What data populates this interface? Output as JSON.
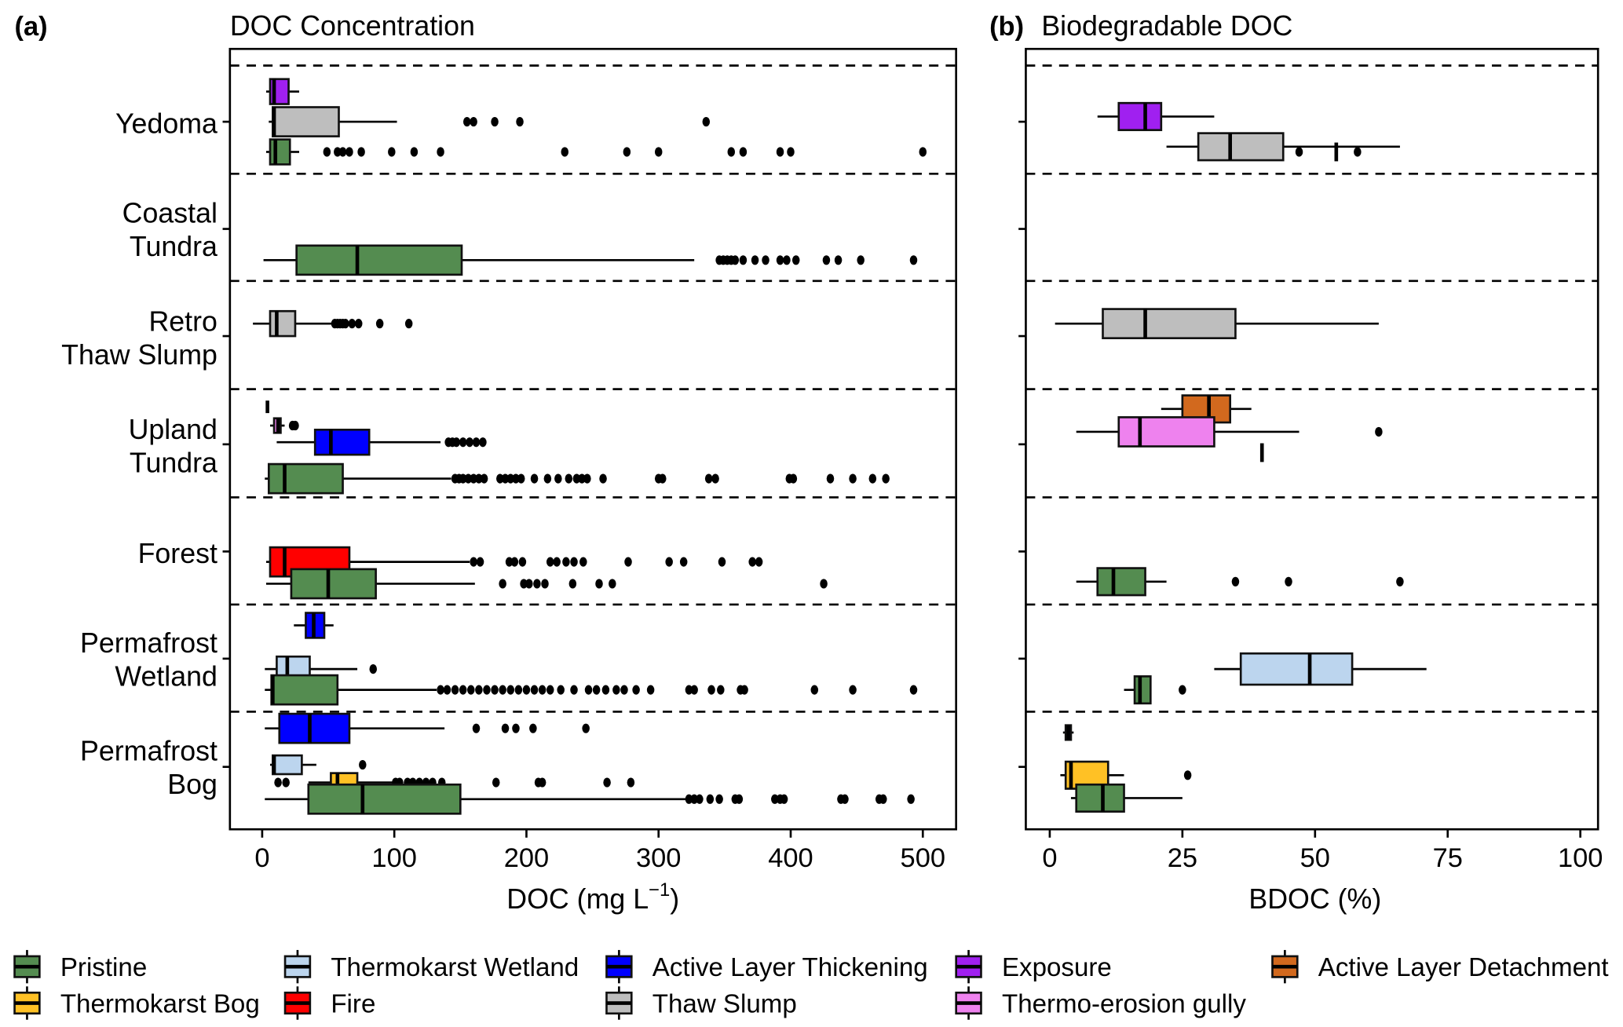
{
  "figure": {
    "panel_a_label": "(a)",
    "panel_b_label": "(b)"
  },
  "legend": [
    {
      "key": "pristine",
      "label": "Pristine",
      "color": "#548c50"
    },
    {
      "key": "thermokarst_wetland",
      "label": "Thermokarst Wetland",
      "color": "#bcd5ee"
    },
    {
      "key": "active_layer_thickening",
      "label": "Active Layer Thickening",
      "color": "#0000ff"
    },
    {
      "key": "exposure",
      "label": "Exposure",
      "color": "#a020f0"
    },
    {
      "key": "active_layer_detachment",
      "label": "Active Layer Detachment",
      "color": "#d2691e"
    },
    {
      "key": "thermokarst_bog",
      "label": "Thermokarst Bog",
      "color": "#ffc125"
    },
    {
      "key": "fire",
      "label": "Fire",
      "color": "#ff0000"
    },
    {
      "key": "thaw_slump",
      "label": "Thaw Slump",
      "color": "#bebebe"
    },
    {
      "key": "thermo_erosion_gully",
      "label": "Thermo-erosion gully",
      "color": "#ee82ee"
    }
  ],
  "chart_data": [
    {
      "type": "boxplot",
      "orientation": "horizontal",
      "title": "DOC Concentration",
      "xlabel": "DOC (mg L",
      "xlabel_superscript": "−1",
      "xlabel_suffix": ")",
      "xlim": [
        -25,
        530
      ],
      "xticks": [
        0,
        100,
        200,
        300,
        400,
        500
      ],
      "xtick_labels": [
        "0",
        "100",
        "200",
        "300",
        "400",
        "500"
      ],
      "categories": [
        {
          "lines": [
            "Yedoma"
          ]
        },
        {
          "lines": [
            "Coastal",
            "Tundra"
          ]
        },
        {
          "lines": [
            "Retro",
            "Thaw Slump"
          ]
        },
        {
          "lines": [
            "Upland",
            "Tundra"
          ]
        },
        {
          "lines": [
            "Forest"
          ]
        },
        {
          "lines": [
            "Permafrost",
            "Wetland"
          ]
        },
        {
          "lines": [
            "Permafrost",
            "Bog"
          ]
        }
      ],
      "grid": "dashed separators between categories",
      "boxes": [
        {
          "row": 0,
          "group": "exposure",
          "whisker_low": 3,
          "q1": 6,
          "median": 9,
          "q3": 20,
          "whisker_high": 28,
          "outliers": []
        },
        {
          "row": 0,
          "group": "thaw_slump",
          "whisker_low": 5,
          "q1": 8,
          "median": 9,
          "q3": 58,
          "whisker_high": 102,
          "outliers": [
            155,
            160,
            176,
            195,
            336
          ]
        },
        {
          "row": 0,
          "group": "pristine",
          "whisker_low": 3,
          "q1": 6,
          "median": 10,
          "q3": 21,
          "whisker_high": 28,
          "outliers": [
            49,
            57,
            61,
            66,
            75,
            98,
            115,
            135,
            229,
            276,
            300,
            355,
            364,
            392,
            400,
            500
          ]
        },
        {
          "row": 1,
          "group": "pristine",
          "whisker_low": 1,
          "q1": 26,
          "median": 72,
          "q3": 151,
          "whisker_high": 327,
          "outliers": [
            346,
            349,
            352,
            355,
            358,
            364,
            373,
            381,
            392,
            397,
            404,
            427,
            436,
            453,
            493
          ]
        },
        {
          "row": 2,
          "group": "thaw_slump",
          "whisker_low": -7,
          "q1": 6,
          "median": 11,
          "q3": 25,
          "whisker_high": 54,
          "outliers": [
            55,
            57,
            59,
            61,
            63,
            68,
            73,
            89,
            111
          ]
        },
        {
          "row": 3,
          "group": "active_layer_detachment",
          "whisker_low": 4,
          "q1": 4,
          "median": 4,
          "q3": 4,
          "whisker_high": 4,
          "outliers": []
        },
        {
          "row": 3,
          "group": "thermo_erosion_gully",
          "whisker_low": 6,
          "q1": 9,
          "median": 12,
          "q3": 14,
          "whisker_high": 17,
          "outliers": [
            23,
            25
          ]
        },
        {
          "row": 3,
          "group": "active_layer_thickening",
          "whisker_low": 11,
          "q1": 40,
          "median": 52,
          "q3": 81,
          "whisker_high": 135,
          "outliers": [
            141,
            144,
            147,
            152,
            157,
            162,
            167
          ]
        },
        {
          "row": 3,
          "group": "pristine",
          "whisker_low": 2,
          "q1": 5,
          "median": 17,
          "q3": 61,
          "whisker_high": 143,
          "outliers": [
            146,
            149,
            152,
            156,
            160,
            164,
            168,
            180,
            184,
            188,
            192,
            196,
            206,
            216,
            224,
            232,
            238,
            242,
            246,
            258,
            300,
            303,
            338,
            343,
            399,
            402,
            430,
            447,
            462,
            472
          ]
        },
        {
          "row": 4,
          "group": "fire",
          "whisker_low": 3,
          "q1": 6,
          "median": 17,
          "q3": 66,
          "whisker_high": 157,
          "outliers": [
            160,
            165,
            187,
            191,
            197,
            218,
            223,
            230,
            236,
            243,
            277,
            308,
            319,
            348,
            371,
            376
          ]
        },
        {
          "row": 4,
          "group": "pristine",
          "whisker_low": 3,
          "q1": 22,
          "median": 50,
          "q3": 86,
          "whisker_high": 161,
          "outliers": [
            182,
            198,
            202,
            208,
            214,
            235,
            255,
            265,
            425
          ]
        },
        {
          "row": 5,
          "group": "active_layer_thickening",
          "whisker_low": 24,
          "q1": 33,
          "median": 39,
          "q3": 47,
          "whisker_high": 54,
          "outliers": []
        },
        {
          "row": 5,
          "group": "thermokarst_wetland",
          "whisker_low": 2,
          "q1": 11,
          "median": 19,
          "q3": 36,
          "whisker_high": 72,
          "outliers": [
            84
          ]
        },
        {
          "row": 5,
          "group": "pristine",
          "whisker_low": 2,
          "q1": 7,
          "median": 8,
          "q3": 57,
          "whisker_high": 132,
          "outliers": [
            135,
            140,
            146,
            152,
            158,
            164,
            170,
            176,
            182,
            188,
            194,
            200,
            206,
            212,
            218,
            226,
            236,
            247,
            253,
            260,
            268,
            274,
            283,
            294,
            323,
            327,
            340,
            347,
            362,
            365,
            418,
            447,
            493
          ]
        },
        {
          "row": 6,
          "group": "active_layer_thickening",
          "whisker_low": 2,
          "q1": 13,
          "median": 36,
          "q3": 66,
          "whisker_high": 138,
          "outliers": [
            162,
            184,
            192,
            205,
            245
          ]
        },
        {
          "row": 6,
          "group": "thermokarst_wetland",
          "whisker_low": 6,
          "q1": 8,
          "median": 9,
          "q3": 30,
          "whisker_high": 41,
          "outliers": [
            76
          ]
        },
        {
          "row": 6,
          "group": "thermokarst_bog",
          "whisker_low": 35,
          "q1": 52,
          "median": 57,
          "q3": 72,
          "whisker_high": 99,
          "outliers": [
            12,
            18,
            101,
            104,
            110,
            114,
            119,
            124,
            129,
            136,
            177,
            209,
            212,
            261,
            279
          ]
        },
        {
          "row": 6,
          "group": "pristine",
          "whisker_low": 2,
          "q1": 35,
          "median": 76,
          "q3": 150,
          "whisker_high": 321,
          "outliers": [
            323,
            327,
            331,
            339,
            346,
            358,
            361,
            388,
            392,
            395,
            438,
            441,
            467,
            470,
            491
          ]
        }
      ]
    },
    {
      "type": "boxplot",
      "orientation": "horizontal",
      "title": "Biodegradable DOC",
      "xlabel": "BDOC (%)",
      "xlim": [
        -5,
        105
      ],
      "xticks": [
        0,
        25,
        50,
        75,
        100
      ],
      "xtick_labels": [
        "0",
        "25",
        "50",
        "75",
        "100"
      ],
      "categories": [
        "Yedoma",
        "Coastal Tundra",
        "Retro Thaw Slump",
        "Upland Tundra",
        "Forest",
        "Permafrost Wetland",
        "Permafrost Bog"
      ],
      "grid": "dashed separators between categories",
      "boxes": [
        {
          "row": 0,
          "group": "exposure",
          "whisker_low": 9,
          "q1": 13,
          "median": 18,
          "q3": 21,
          "whisker_high": 31,
          "outliers": []
        },
        {
          "row": 0,
          "group": "thaw_slump",
          "whisker_low": 22,
          "q1": 28,
          "median": 34,
          "q3": 44,
          "whisker_high": 66,
          "outliers": []
        },
        {
          "row": 0,
          "group": "pristine",
          "whisker_low": 54,
          "q1": 54,
          "median": 54,
          "q3": 54,
          "whisker_high": 54,
          "outliers": [
            47,
            58
          ]
        },
        {
          "row": 2,
          "group": "thaw_slump",
          "whisker_low": 1,
          "q1": 10,
          "median": 18,
          "q3": 35,
          "whisker_high": 62,
          "outliers": []
        },
        {
          "row": 3,
          "group": "active_layer_detachment",
          "whisker_low": 21,
          "q1": 25,
          "median": 30,
          "q3": 34,
          "whisker_high": 38,
          "outliers": []
        },
        {
          "row": 3,
          "group": "thermo_erosion_gully",
          "whisker_low": 5,
          "q1": 13,
          "median": 17,
          "q3": 31,
          "whisker_high": 47,
          "outliers": [
            62
          ]
        },
        {
          "row": 3,
          "group": "pristine",
          "whisker_low": 40,
          "q1": 40,
          "median": 40,
          "q3": 40,
          "whisker_high": 40,
          "outliers": []
        },
        {
          "row": 4,
          "group": "pristine",
          "whisker_low": 5,
          "q1": 9,
          "median": 12,
          "q3": 18,
          "whisker_high": 22,
          "outliers": [
            35,
            45,
            66
          ]
        },
        {
          "row": 5,
          "group": "thermokarst_wetland",
          "whisker_low": 31,
          "q1": 36,
          "median": 49,
          "q3": 57,
          "whisker_high": 71,
          "outliers": []
        },
        {
          "row": 5,
          "group": "pristine",
          "whisker_low": 14,
          "q1": 16,
          "median": 17,
          "q3": 19,
          "whisker_high": 19,
          "outliers": [
            25
          ]
        },
        {
          "row": 6,
          "group": "active_layer_thickening",
          "whisker_low": 2.5,
          "q1": 3,
          "median": 3.5,
          "q3": 4,
          "whisker_high": 4.5,
          "outliers": []
        },
        {
          "row": 6,
          "group": "thermokarst_bog",
          "whisker_low": 2,
          "q1": 3,
          "median": 4,
          "q3": 11,
          "whisker_high": 14,
          "outliers": [
            26
          ]
        },
        {
          "row": 6,
          "group": "pristine",
          "whisker_low": 4,
          "q1": 5,
          "median": 10,
          "q3": 14,
          "whisker_high": 25,
          "outliers": []
        }
      ]
    }
  ]
}
